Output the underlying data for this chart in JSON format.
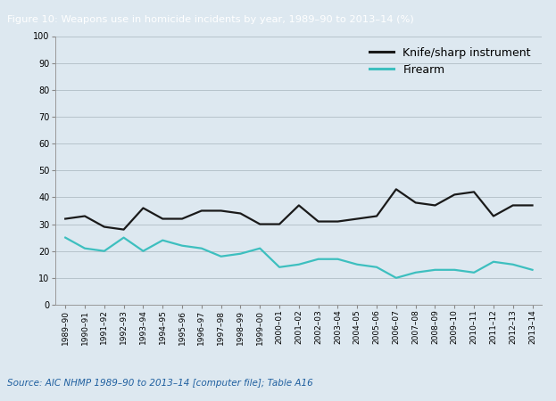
{
  "title": "Figure 10: Weapons use in homicide incidents by year, 1989–90 to 2013–14 (%)",
  "title_bg_color": "#1a7070",
  "title_text_color": "#ffffff",
  "plot_bg_color": "#dde8f0",
  "fig_bg_color": "#dde8f0",
  "source_text": "Source: AIC NHMP 1989–90 to 2013–14 [computer file]; Table A16",
  "source_text_color": "#2060a0",
  "x_labels": [
    "1989–90",
    "1990–91",
    "1991–92",
    "1992–93",
    "1993–94",
    "1994–95",
    "1995–96",
    "1996–97",
    "1997–98",
    "1998–99",
    "1999–00",
    "2000–01",
    "2001–02",
    "2002–03",
    "2003–04",
    "2004–05",
    "2005–06",
    "2006–07",
    "2007–08",
    "2008–09",
    "2009–10",
    "2010–11",
    "2011–12",
    "2012–13",
    "2013–14"
  ],
  "knife_values": [
    32,
    33,
    29,
    28,
    36,
    32,
    32,
    35,
    35,
    34,
    30,
    30,
    37,
    31,
    31,
    32,
    33,
    43,
    38,
    37,
    41,
    42,
    33,
    37,
    37
  ],
  "firearm_values": [
    25,
    21,
    20,
    25,
    20,
    24,
    22,
    21,
    18,
    19,
    21,
    14,
    15,
    17,
    17,
    15,
    14,
    10,
    12,
    13,
    13,
    12,
    16,
    15,
    13
  ],
  "knife_color": "#1a1a1a",
  "firearm_color": "#3dbfbf",
  "knife_label": "Knife/sharp instrument",
  "firearm_label": "Firearm",
  "ylim": [
    0,
    100
  ],
  "yticks": [
    0,
    10,
    20,
    30,
    40,
    50,
    60,
    70,
    80,
    90,
    100
  ],
  "grid_color": "#b0bec5",
  "line_width": 1.6,
  "title_fontsize": 8.2,
  "tick_fontsize": 7.0,
  "legend_fontsize": 9.0,
  "source_fontsize": 7.5
}
